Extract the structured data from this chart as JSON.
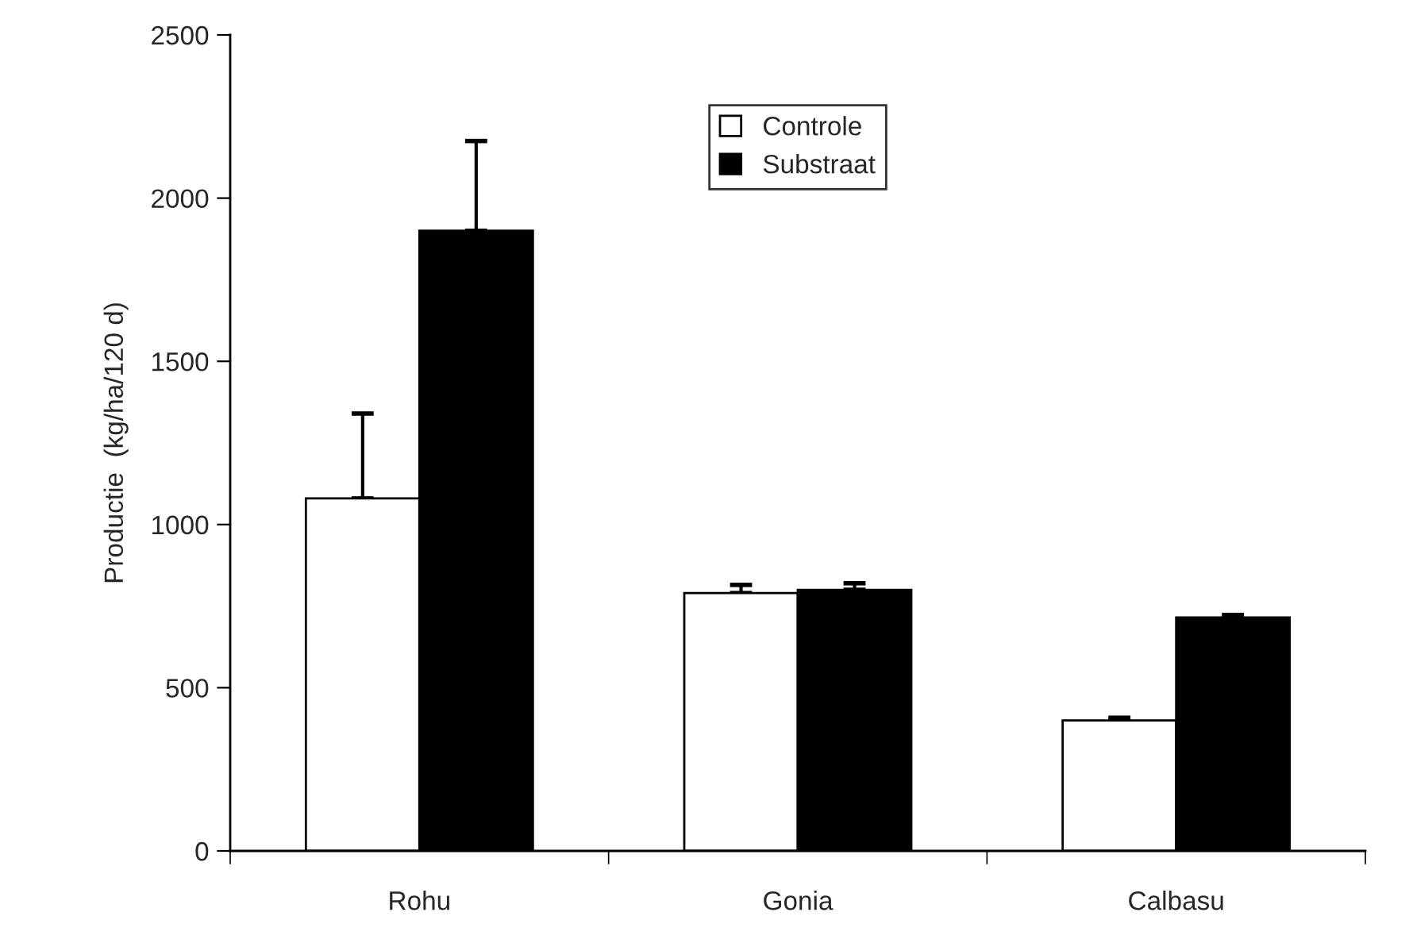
{
  "chart_data": {
    "type": "bar",
    "ylabel": "Productie  (kg/ha/120 d)",
    "categories": [
      "Rohu",
      "Gonia",
      "Calbasu"
    ],
    "series": [
      {
        "name": "Controle",
        "color": "#ffffff",
        "values": [
          1080,
          790,
          400
        ],
        "errors": [
          [
            1080,
            1340
          ],
          [
            790,
            815
          ],
          [
            400,
            408
          ]
        ]
      },
      {
        "name": "Substraat",
        "color": "#000000",
        "values": [
          1900,
          800,
          715
        ],
        "errors": [
          [
            1900,
            2175
          ],
          [
            800,
            820
          ],
          [
            715,
            723
          ]
        ]
      }
    ],
    "ylim": [
      0,
      2500
    ],
    "yticks": [
      0,
      500,
      1000,
      1500,
      2000,
      2500
    ],
    "grid": false,
    "legend": "top"
  }
}
